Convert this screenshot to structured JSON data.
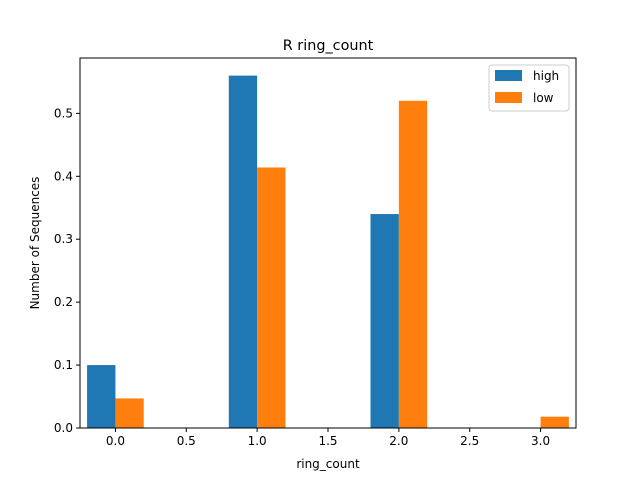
{
  "chart_data": {
    "type": "bar",
    "title": "R ring_count",
    "xlabel": "ring_count",
    "ylabel": "Number of Sequences",
    "x_ticks": [
      "0.0",
      "0.5",
      "1.0",
      "1.5",
      "2.0",
      "2.5",
      "3.0"
    ],
    "y_ticks": [
      "0.0",
      "0.1",
      "0.2",
      "0.3",
      "0.4",
      "0.5"
    ],
    "xlim": [
      -0.25,
      3.25
    ],
    "ylim": [
      0,
      0.588
    ],
    "grid": false,
    "legend_position": "top-right",
    "bar_width": 0.2,
    "series": [
      {
        "name": "high",
        "color": "#1f77b4",
        "points": [
          {
            "x": 0,
            "y": 0.1
          },
          {
            "x": 1,
            "y": 0.56
          },
          {
            "x": 2,
            "y": 0.34
          }
        ]
      },
      {
        "name": "low",
        "color": "#ff7f0e",
        "points": [
          {
            "x": 0,
            "y": 0.047
          },
          {
            "x": 1,
            "y": 0.414
          },
          {
            "x": 2,
            "y": 0.52
          },
          {
            "x": 3,
            "y": 0.018
          }
        ]
      }
    ]
  }
}
